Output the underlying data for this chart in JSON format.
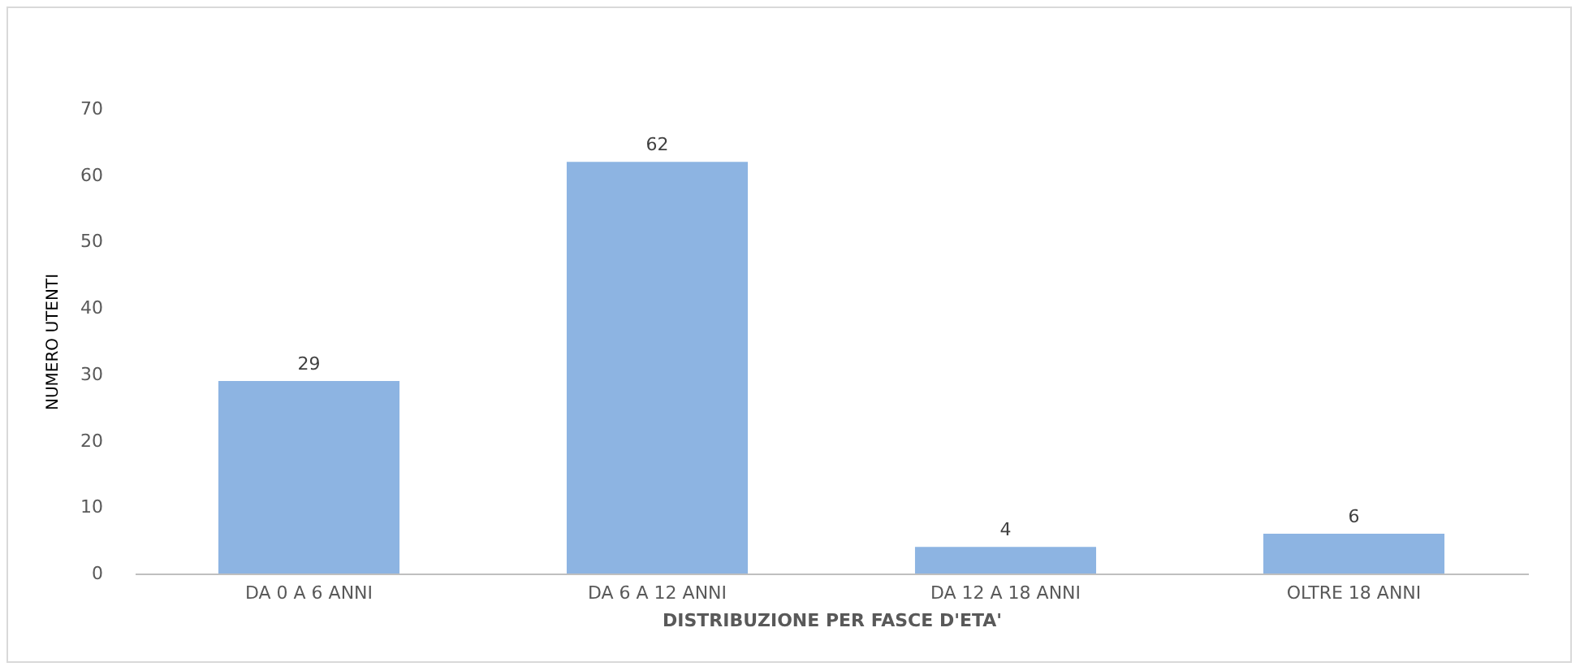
{
  "chart_data": {
    "type": "bar",
    "xlabel": "DISTRIBUZIONE PER FASCE D'ETA'",
    "ylabel": "NUMERO UTENTI",
    "categories": [
      "DA 0 A 6 ANNI",
      "DA 6 A 12 ANNI",
      "DA 12 A 18 ANNI",
      "OLTRE 18 ANNI"
    ],
    "values": [
      29,
      62,
      4,
      6
    ],
    "color": "#8db4e2",
    "ylim": [
      0,
      70
    ],
    "yticks": [
      0,
      10,
      20,
      30,
      40,
      50,
      60,
      70
    ],
    "data_labels": true
  }
}
